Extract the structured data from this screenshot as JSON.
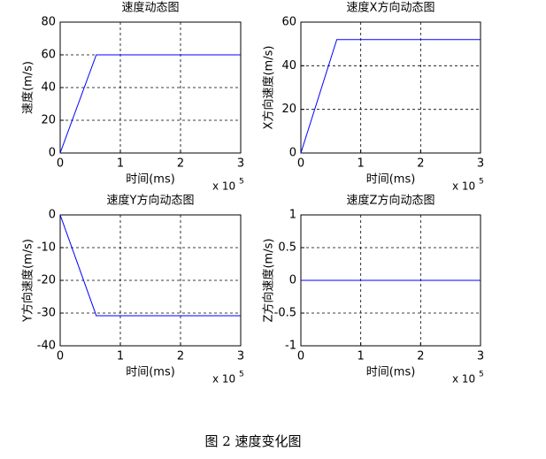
{
  "chart_data": [
    {
      "type": "line",
      "title": "速度动态图",
      "xlabel": "时间(ms)",
      "ylabel": "速度(m/s)",
      "x_exponent_label": "x 10",
      "x_exponent": 5,
      "x": [
        0,
        0.6,
        3
      ],
      "series": [
        {
          "color": "#0000ff",
          "values": [
            0,
            60,
            60
          ]
        }
      ],
      "xlim": [
        0,
        3
      ],
      "xticks": [
        0,
        1,
        2,
        3
      ],
      "ylim": [
        0,
        80
      ],
      "yticks": [
        0,
        20,
        40,
        60,
        80
      ],
      "grid": true
    },
    {
      "type": "line",
      "title": "速度X方向动态图",
      "xlabel": "时间(ms)",
      "ylabel": "X方向速度(m/s)",
      "x_exponent_label": "x 10",
      "x_exponent": 5,
      "x": [
        0,
        0.6,
        3
      ],
      "series": [
        {
          "color": "#0000ff",
          "values": [
            0,
            52,
            52
          ]
        }
      ],
      "xlim": [
        0,
        3
      ],
      "xticks": [
        0,
        1,
        2,
        3
      ],
      "ylim": [
        0,
        60
      ],
      "yticks": [
        0,
        20,
        40,
        60
      ],
      "grid": true
    },
    {
      "type": "line",
      "title": "速度Y方向动态图",
      "xlabel": "时间(ms)",
      "ylabel": "Y方向速度(m/s)",
      "x_exponent_label": "x 10",
      "x_exponent": 5,
      "x": [
        0,
        0.6,
        3
      ],
      "series": [
        {
          "color": "#0000ff",
          "values": [
            0,
            -30.8,
            -30.8
          ]
        }
      ],
      "xlim": [
        0,
        3
      ],
      "xticks": [
        0,
        1,
        2,
        3
      ],
      "ylim": [
        -40,
        0
      ],
      "yticks": [
        -40,
        -30,
        -20,
        -10,
        0
      ],
      "grid": true
    },
    {
      "type": "line",
      "title": "速度Z方向动态图",
      "xlabel": "时间(ms)",
      "ylabel": "Z方向速度(m/s)",
      "x_exponent_label": "x 10",
      "x_exponent": 5,
      "x": [
        0,
        0.6,
        3
      ],
      "series": [
        {
          "color": "#0000ff",
          "values": [
            0,
            0,
            0
          ]
        }
      ],
      "xlim": [
        0,
        3
      ],
      "xticks": [
        0,
        1,
        2,
        3
      ],
      "ylim": [
        -1,
        1
      ],
      "yticks": [
        -1,
        -0.5,
        0,
        0.5,
        1
      ],
      "grid": true
    }
  ],
  "caption": "图 2  速度变化图"
}
